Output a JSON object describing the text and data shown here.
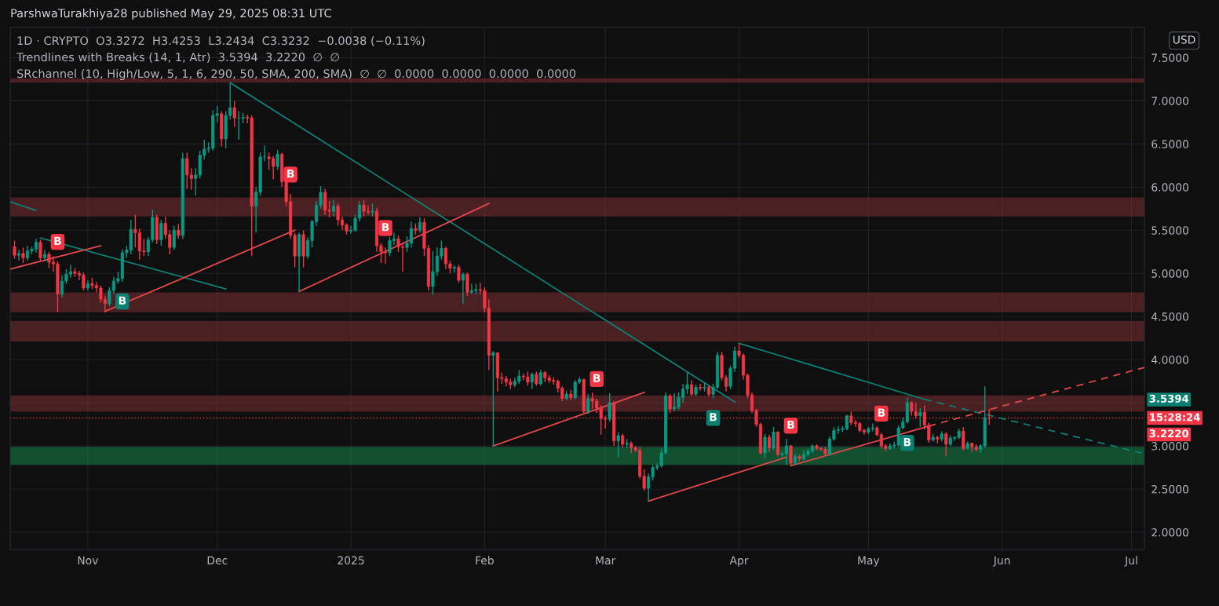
{
  "chart_data": {
    "type": "candlestick",
    "title": "ParshwaTurakhiya28 published May 29, 2025 08:31 UTC",
    "ylabel": "USD",
    "x": [
      "2024-10-15",
      "2024-10-16",
      "2024-10-17",
      "2024-10-18",
      "2024-10-19",
      "2024-10-20",
      "2024-10-21",
      "2024-10-22",
      "2024-10-23",
      "2024-10-24",
      "2024-10-25",
      "2024-10-26",
      "2024-10-27",
      "2024-10-28",
      "2024-10-29",
      "2024-10-30",
      "2024-10-31",
      "2024-11-01",
      "2024-11-02",
      "2024-11-03",
      "2024-11-04",
      "2024-11-05",
      "2024-11-06",
      "2024-11-07",
      "2024-11-08",
      "2024-11-09",
      "2024-11-10",
      "2024-11-11",
      "2024-11-12",
      "2024-11-13",
      "2024-11-14",
      "2024-11-15",
      "2024-11-16",
      "2024-11-17",
      "2024-11-18",
      "2024-11-19",
      "2024-11-20",
      "2024-11-21",
      "2024-11-22",
      "2024-11-23",
      "2024-11-24",
      "2024-11-25",
      "2024-11-26",
      "2024-11-27",
      "2024-11-28",
      "2024-11-29",
      "2024-11-30",
      "2024-12-01",
      "2024-12-02",
      "2024-12-03",
      "2024-12-04",
      "2024-12-05",
      "2024-12-06",
      "2024-12-07",
      "2024-12-08",
      "2024-12-09",
      "2024-12-10",
      "2024-12-11",
      "2024-12-12",
      "2024-12-13",
      "2024-12-14",
      "2024-12-15",
      "2024-12-16",
      "2024-12-17",
      "2024-12-18",
      "2024-12-19",
      "2024-12-20",
      "2024-12-21",
      "2024-12-22",
      "2024-12-23",
      "2024-12-24",
      "2024-12-25",
      "2024-12-26",
      "2024-12-27",
      "2024-12-28",
      "2024-12-29",
      "2024-12-30",
      "2024-12-31",
      "2025-01-01",
      "2025-01-02",
      "2025-01-03",
      "2025-01-04",
      "2025-01-05",
      "2025-01-06",
      "2025-01-07",
      "2025-01-08",
      "2025-01-09",
      "2025-01-10",
      "2025-01-11",
      "2025-01-12",
      "2025-01-13",
      "2025-01-14",
      "2025-01-15",
      "2025-01-16",
      "2025-01-17",
      "2025-01-18",
      "2025-01-19",
      "2025-01-20",
      "2025-01-21",
      "2025-01-22",
      "2025-01-23",
      "2025-01-24",
      "2025-01-25",
      "2025-01-26",
      "2025-01-27",
      "2025-01-28",
      "2025-01-29",
      "2025-01-30",
      "2025-01-31",
      "2025-02-01",
      "2025-02-02",
      "2025-02-03",
      "2025-02-04",
      "2025-02-05",
      "2025-02-06",
      "2025-02-07",
      "2025-02-08",
      "2025-02-09",
      "2025-02-10",
      "2025-02-11",
      "2025-02-12",
      "2025-02-13",
      "2025-02-14",
      "2025-02-15",
      "2025-02-16",
      "2025-02-17",
      "2025-02-18",
      "2025-02-19",
      "2025-02-20",
      "2025-02-21",
      "2025-02-22",
      "2025-02-23",
      "2025-02-24",
      "2025-02-25",
      "2025-02-26",
      "2025-02-27",
      "2025-02-28",
      "2025-03-01",
      "2025-03-02",
      "2025-03-03",
      "2025-03-04",
      "2025-03-05",
      "2025-03-06",
      "2025-03-07",
      "2025-03-08",
      "2025-03-09",
      "2025-03-10",
      "2025-03-11",
      "2025-03-12",
      "2025-03-13",
      "2025-03-14",
      "2025-03-15",
      "2025-03-16",
      "2025-03-17",
      "2025-03-18",
      "2025-03-19",
      "2025-03-20",
      "2025-03-21",
      "2025-03-22",
      "2025-03-23",
      "2025-03-24",
      "2025-03-25",
      "2025-03-26",
      "2025-03-27",
      "2025-03-28",
      "2025-03-29",
      "2025-03-30",
      "2025-03-31",
      "2025-04-01",
      "2025-04-02",
      "2025-04-03",
      "2025-04-04",
      "2025-04-05",
      "2025-04-06",
      "2025-04-07",
      "2025-04-08",
      "2025-04-09",
      "2025-04-10",
      "2025-04-11",
      "2025-04-12",
      "2025-04-13",
      "2025-04-14",
      "2025-04-15",
      "2025-04-16",
      "2025-04-17",
      "2025-04-18",
      "2025-04-19",
      "2025-04-20",
      "2025-04-21",
      "2025-04-22",
      "2025-04-23",
      "2025-04-24",
      "2025-04-25",
      "2025-04-26",
      "2025-04-27",
      "2025-04-28",
      "2025-04-29",
      "2025-04-30",
      "2025-05-01",
      "2025-05-02",
      "2025-05-03",
      "2025-05-04",
      "2025-05-05",
      "2025-05-06",
      "2025-05-07",
      "2025-05-08",
      "2025-05-09",
      "2025-05-10",
      "2025-05-11",
      "2025-05-12",
      "2025-05-13",
      "2025-05-14",
      "2025-05-15",
      "2025-05-16",
      "2025-05-17",
      "2025-05-18",
      "2025-05-19",
      "2025-05-20",
      "2025-05-21",
      "2025-05-22",
      "2025-05-23",
      "2025-05-24",
      "2025-05-25",
      "2025-05-26",
      "2025-05-27",
      "2025-05-28",
      "2025-05-29"
    ],
    "ohlc": [
      [
        5.31,
        5.38,
        5.17,
        5.21
      ],
      [
        5.21,
        5.27,
        5.15,
        5.23
      ],
      [
        5.23,
        5.3,
        5.12,
        5.18
      ],
      [
        5.18,
        5.32,
        5.15,
        5.26
      ],
      [
        5.26,
        5.31,
        5.22,
        5.28
      ],
      [
        5.28,
        5.4,
        5.24,
        5.36
      ],
      [
        5.36,
        5.39,
        5.14,
        5.18
      ],
      [
        5.18,
        5.27,
        5.14,
        5.22
      ],
      [
        5.22,
        5.25,
        5.06,
        5.13
      ],
      [
        5.13,
        5.2,
        5.02,
        5.11
      ],
      [
        5.11,
        5.14,
        4.55,
        4.76
      ],
      [
        4.76,
        4.98,
        4.72,
        4.91
      ],
      [
        4.91,
        5.05,
        4.88,
        4.99
      ],
      [
        4.99,
        5.1,
        4.95,
        5.02
      ],
      [
        5.02,
        5.06,
        4.96,
        5.0
      ],
      [
        5.0,
        5.03,
        4.92,
        4.98
      ],
      [
        4.98,
        5.01,
        4.8,
        4.83
      ],
      [
        4.83,
        4.92,
        4.8,
        4.88
      ],
      [
        4.88,
        4.95,
        4.82,
        4.86
      ],
      [
        4.86,
        4.9,
        4.78,
        4.83
      ],
      [
        4.83,
        4.86,
        4.66,
        4.7
      ],
      [
        4.7,
        4.74,
        4.55,
        4.65
      ],
      [
        4.65,
        4.84,
        4.62,
        4.8
      ],
      [
        4.8,
        4.96,
        4.76,
        4.91
      ],
      [
        4.91,
        5.02,
        4.88,
        4.94
      ],
      [
        4.94,
        5.28,
        4.9,
        5.24
      ],
      [
        5.24,
        5.32,
        5.18,
        5.27
      ],
      [
        5.27,
        5.62,
        5.22,
        5.51
      ],
      [
        5.51,
        5.68,
        5.3,
        5.47
      ],
      [
        5.47,
        5.52,
        5.16,
        5.26
      ],
      [
        5.26,
        5.4,
        5.2,
        5.25
      ],
      [
        5.25,
        5.42,
        5.2,
        5.39
      ],
      [
        5.39,
        5.74,
        5.36,
        5.65
      ],
      [
        5.65,
        5.68,
        5.34,
        5.39
      ],
      [
        5.39,
        5.62,
        5.32,
        5.58
      ],
      [
        5.58,
        5.66,
        5.4,
        5.45
      ],
      [
        5.45,
        5.5,
        5.22,
        5.3
      ],
      [
        5.3,
        5.55,
        5.27,
        5.5
      ],
      [
        5.5,
        5.57,
        5.4,
        5.44
      ],
      [
        5.44,
        6.4,
        5.4,
        6.33
      ],
      [
        6.33,
        6.4,
        5.98,
        6.14
      ],
      [
        6.14,
        6.22,
        5.97,
        6.1
      ],
      [
        6.1,
        6.22,
        5.9,
        6.14
      ],
      [
        6.14,
        6.42,
        6.1,
        6.37
      ],
      [
        6.37,
        6.55,
        6.32,
        6.44
      ],
      [
        6.44,
        6.52,
        6.4,
        6.45
      ],
      [
        6.45,
        6.89,
        6.42,
        6.83
      ],
      [
        6.83,
        6.94,
        6.75,
        6.85
      ],
      [
        6.85,
        6.88,
        6.47,
        6.56
      ],
      [
        6.56,
        6.88,
        6.45,
        6.83
      ],
      [
        6.83,
        7.2,
        6.78,
        6.92
      ],
      [
        6.92,
        7.0,
        6.7,
        6.8
      ],
      [
        6.8,
        6.88,
        6.55,
        6.8
      ],
      [
        6.8,
        6.86,
        6.74,
        6.81
      ],
      [
        6.81,
        6.84,
        6.74,
        6.8
      ],
      [
        6.8,
        6.83,
        5.2,
        5.78
      ],
      [
        5.78,
        6.0,
        5.47,
        5.94
      ],
      [
        5.94,
        6.4,
        5.9,
        6.35
      ],
      [
        6.35,
        6.48,
        6.3,
        6.35
      ],
      [
        6.35,
        6.4,
        6.2,
        6.33
      ],
      [
        6.33,
        6.36,
        6.09,
        6.24
      ],
      [
        6.24,
        6.43,
        6.2,
        6.38
      ],
      [
        6.38,
        6.4,
        6.0,
        6.06
      ],
      [
        6.06,
        6.1,
        5.78,
        5.83
      ],
      [
        5.83,
        5.92,
        5.4,
        5.44
      ],
      [
        5.44,
        5.47,
        5.07,
        5.2
      ],
      [
        5.2,
        5.47,
        4.79,
        5.45
      ],
      [
        5.45,
        5.5,
        5.07,
        5.2
      ],
      [
        5.2,
        5.42,
        5.17,
        5.38
      ],
      [
        5.38,
        5.62,
        5.3,
        5.6
      ],
      [
        5.6,
        5.84,
        5.55,
        5.79
      ],
      [
        5.79,
        6.01,
        5.75,
        5.94
      ],
      [
        5.94,
        5.98,
        5.68,
        5.73
      ],
      [
        5.73,
        5.84,
        5.65,
        5.72
      ],
      [
        5.72,
        5.85,
        5.66,
        5.78
      ],
      [
        5.78,
        5.81,
        5.55,
        5.62
      ],
      [
        5.62,
        5.66,
        5.5,
        5.56
      ],
      [
        5.56,
        5.58,
        5.45,
        5.49
      ],
      [
        5.49,
        5.55,
        5.46,
        5.5
      ],
      [
        5.5,
        5.68,
        5.48,
        5.64
      ],
      [
        5.64,
        5.84,
        5.6,
        5.79
      ],
      [
        5.79,
        5.85,
        5.66,
        5.72
      ],
      [
        5.72,
        5.79,
        5.68,
        5.71
      ],
      [
        5.71,
        5.81,
        5.66,
        5.72
      ],
      [
        5.72,
        5.76,
        5.25,
        5.32
      ],
      [
        5.32,
        5.35,
        5.12,
        5.25
      ],
      [
        5.25,
        5.3,
        5.11,
        5.24
      ],
      [
        5.24,
        5.42,
        5.2,
        5.38
      ],
      [
        5.38,
        5.47,
        5.33,
        5.4
      ],
      [
        5.4,
        5.44,
        5.25,
        5.31
      ],
      [
        5.31,
        5.36,
        5.02,
        5.3
      ],
      [
        5.3,
        5.43,
        5.25,
        5.35
      ],
      [
        5.35,
        5.6,
        5.3,
        5.52
      ],
      [
        5.52,
        5.58,
        5.45,
        5.5
      ],
      [
        5.5,
        5.65,
        5.47,
        5.59
      ],
      [
        5.59,
        5.64,
        5.2,
        5.29
      ],
      [
        5.29,
        5.33,
        4.8,
        4.85
      ],
      [
        4.85,
        5.26,
        4.75,
        5.02
      ],
      [
        5.02,
        5.3,
        4.97,
        5.2
      ],
      [
        5.2,
        5.38,
        5.16,
        5.29
      ],
      [
        5.29,
        5.31,
        5.05,
        5.11
      ],
      [
        5.11,
        5.15,
        5.0,
        5.06
      ],
      [
        5.06,
        5.09,
        5.01,
        5.07
      ],
      [
        5.07,
        5.1,
        4.89,
        4.92
      ],
      [
        4.92,
        5.01,
        4.65,
        4.99
      ],
      [
        4.99,
        5.01,
        4.74,
        4.78
      ],
      [
        4.78,
        4.88,
        4.76,
        4.8
      ],
      [
        4.8,
        4.88,
        4.76,
        4.81
      ],
      [
        4.81,
        4.89,
        4.76,
        4.8
      ],
      [
        4.8,
        4.84,
        4.55,
        4.6
      ],
      [
        4.6,
        4.7,
        3.88,
        4.05
      ],
      [
        4.05,
        4.1,
        3.0,
        4.08
      ],
      [
        4.08,
        4.08,
        3.63,
        3.79
      ],
      [
        3.79,
        3.85,
        3.72,
        3.78
      ],
      [
        3.78,
        3.81,
        3.69,
        3.74
      ],
      [
        3.74,
        3.78,
        3.66,
        3.71
      ],
      [
        3.71,
        3.79,
        3.68,
        3.75
      ],
      [
        3.75,
        3.88,
        3.72,
        3.81
      ],
      [
        3.81,
        3.84,
        3.76,
        3.8
      ],
      [
        3.8,
        3.86,
        3.7,
        3.74
      ],
      [
        3.74,
        3.85,
        3.66,
        3.83
      ],
      [
        3.83,
        3.86,
        3.7,
        3.72
      ],
      [
        3.72,
        3.88,
        3.7,
        3.85
      ],
      [
        3.85,
        3.87,
        3.74,
        3.79
      ],
      [
        3.79,
        3.82,
        3.73,
        3.76
      ],
      [
        3.76,
        3.8,
        3.71,
        3.75
      ],
      [
        3.75,
        3.77,
        3.62,
        3.67
      ],
      [
        3.67,
        3.69,
        3.52,
        3.55
      ],
      [
        3.55,
        3.64,
        3.53,
        3.6
      ],
      [
        3.6,
        3.65,
        3.53,
        3.56
      ],
      [
        3.56,
        3.76,
        3.54,
        3.74
      ],
      [
        3.74,
        3.8,
        3.72,
        3.77
      ],
      [
        3.77,
        3.78,
        3.38,
        3.4
      ],
      [
        3.4,
        3.6,
        3.37,
        3.55
      ],
      [
        3.55,
        3.62,
        3.43,
        3.52
      ],
      [
        3.52,
        3.55,
        3.38,
        3.44
      ],
      [
        3.44,
        3.47,
        3.13,
        3.32
      ],
      [
        3.32,
        3.35,
        3.2,
        3.31
      ],
      [
        3.31,
        3.61,
        3.28,
        3.5
      ],
      [
        3.5,
        3.52,
        3.0,
        3.06
      ],
      [
        3.06,
        3.16,
        2.87,
        3.12
      ],
      [
        3.12,
        3.14,
        2.98,
        3.02
      ],
      [
        3.02,
        3.08,
        2.98,
        3.03
      ],
      [
        3.03,
        3.05,
        2.92,
        2.98
      ],
      [
        2.98,
        3.0,
        2.93,
        2.95
      ],
      [
        2.95,
        2.99,
        2.62,
        2.65
      ],
      [
        2.65,
        2.73,
        2.48,
        2.51
      ],
      [
        2.51,
        2.68,
        2.36,
        2.64
      ],
      [
        2.64,
        2.78,
        2.6,
        2.75
      ],
      [
        2.75,
        2.8,
        2.72,
        2.77
      ],
      [
        2.77,
        2.97,
        2.75,
        2.92
      ],
      [
        2.92,
        3.62,
        2.9,
        3.58
      ],
      [
        3.58,
        3.6,
        3.38,
        3.43
      ],
      [
        3.43,
        3.61,
        3.4,
        3.45
      ],
      [
        3.45,
        3.62,
        3.42,
        3.56
      ],
      [
        3.56,
        3.72,
        3.5,
        3.66
      ],
      [
        3.66,
        3.85,
        3.6,
        3.71
      ],
      [
        3.71,
        3.76,
        3.58,
        3.6
      ],
      [
        3.6,
        3.71,
        3.58,
        3.68
      ],
      [
        3.68,
        3.72,
        3.64,
        3.67
      ],
      [
        3.67,
        3.73,
        3.63,
        3.68
      ],
      [
        3.68,
        3.7,
        3.57,
        3.6
      ],
      [
        3.6,
        3.72,
        3.55,
        3.68
      ],
      [
        3.68,
        4.09,
        3.66,
        4.05
      ],
      [
        4.05,
        4.09,
        3.76,
        3.79
      ],
      [
        3.79,
        3.82,
        3.63,
        3.69
      ],
      [
        3.69,
        3.93,
        3.66,
        3.9
      ],
      [
        3.9,
        4.15,
        3.86,
        4.1
      ],
      [
        4.1,
        4.19,
        4.02,
        4.05
      ],
      [
        4.05,
        4.07,
        3.77,
        3.82
      ],
      [
        3.82,
        3.84,
        3.55,
        3.59
      ],
      [
        3.59,
        3.62,
        3.38,
        3.41
      ],
      [
        3.41,
        3.43,
        3.22,
        3.25
      ],
      [
        3.25,
        3.27,
        2.9,
        2.92
      ],
      [
        2.92,
        3.14,
        2.86,
        3.1
      ],
      [
        3.1,
        3.13,
        2.93,
        2.98
      ],
      [
        2.98,
        3.22,
        2.95,
        3.16
      ],
      [
        3.16,
        3.17,
        2.88,
        2.9
      ],
      [
        2.9,
        2.94,
        2.87,
        2.91
      ],
      [
        2.91,
        3.08,
        2.78,
        3.0
      ],
      [
        3.0,
        3.01,
        2.77,
        2.8
      ],
      [
        2.8,
        2.91,
        2.78,
        2.88
      ],
      [
        2.88,
        2.9,
        2.82,
        2.85
      ],
      [
        2.85,
        2.95,
        2.83,
        2.9
      ],
      [
        2.9,
        2.97,
        2.88,
        2.94
      ],
      [
        2.94,
        3.02,
        2.92,
        3.0
      ],
      [
        3.0,
        3.02,
        2.95,
        2.97
      ],
      [
        2.97,
        2.99,
        2.94,
        2.96
      ],
      [
        2.96,
        2.99,
        2.89,
        2.91
      ],
      [
        2.91,
        3.11,
        2.89,
        3.08
      ],
      [
        3.08,
        3.22,
        3.06,
        3.18
      ],
      [
        3.18,
        3.23,
        3.14,
        3.19
      ],
      [
        3.19,
        3.23,
        3.16,
        3.2
      ],
      [
        3.2,
        3.36,
        3.18,
        3.35
      ],
      [
        3.35,
        3.4,
        3.24,
        3.27
      ],
      [
        3.27,
        3.3,
        3.22,
        3.26
      ],
      [
        3.26,
        3.28,
        3.16,
        3.18
      ],
      [
        3.18,
        3.2,
        3.13,
        3.16
      ],
      [
        3.16,
        3.22,
        3.14,
        3.2
      ],
      [
        3.2,
        3.26,
        3.17,
        3.21
      ],
      [
        3.21,
        3.23,
        3.11,
        3.13
      ],
      [
        3.13,
        3.15,
        2.97,
        3.0
      ],
      [
        3.0,
        3.02,
        2.94,
        2.97
      ],
      [
        2.97,
        3.03,
        2.95,
        3.0
      ],
      [
        3.0,
        3.05,
        2.97,
        3.01
      ],
      [
        3.01,
        3.24,
        2.99,
        3.21
      ],
      [
        3.21,
        3.33,
        3.19,
        3.28
      ],
      [
        3.28,
        3.56,
        3.26,
        3.5
      ],
      [
        3.5,
        3.52,
        3.35,
        3.4
      ],
      [
        3.4,
        3.5,
        3.32,
        3.35
      ],
      [
        3.35,
        3.44,
        3.22,
        3.39
      ],
      [
        3.39,
        3.47,
        3.19,
        3.24
      ],
      [
        3.24,
        3.27,
        3.04,
        3.07
      ],
      [
        3.07,
        3.14,
        3.05,
        3.1
      ],
      [
        3.1,
        3.12,
        3.03,
        3.08
      ],
      [
        3.08,
        3.17,
        3.05,
        3.14
      ],
      [
        3.14,
        3.16,
        2.88,
        3.02
      ],
      [
        3.02,
        3.12,
        3.0,
        3.09
      ],
      [
        3.09,
        3.11,
        3.06,
        3.1
      ],
      [
        3.1,
        3.2,
        3.08,
        3.17
      ],
      [
        3.17,
        3.22,
        2.95,
        2.97
      ],
      [
        2.97,
        3.05,
        2.96,
        3.03
      ],
      [
        3.03,
        3.04,
        2.93,
        2.99
      ],
      [
        2.99,
        3.02,
        2.94,
        2.96
      ],
      [
        2.96,
        3.02,
        2.92,
        3.0
      ],
      [
        3.0,
        3.69,
        2.98,
        3.33
      ],
      [
        3.3272,
        3.4253,
        3.2434,
        3.3232
      ]
    ],
    "series": [
      {
        "type": "line",
        "x": [
          "2024-10-14",
          "2024-10-20"
        ],
        "values": [
          5.83,
          5.73
        ],
        "color": "#0f7f73",
        "line_style": "solid"
      },
      {
        "type": "line",
        "x": [
          "2024-10-21",
          "2024-12-03"
        ],
        "values": [
          5.41,
          4.82
        ],
        "color": "#0f7f73",
        "line_style": "solid"
      },
      {
        "type": "line",
        "x": [
          "2024-12-04",
          "2025-03-31"
        ],
        "values": [
          7.21,
          3.51
        ],
        "color": "#0f7f73",
        "line_style": "solid"
      },
      {
        "type": "line",
        "x": [
          "2025-04-01",
          "2025-05-14"
        ],
        "values": [
          4.19,
          3.54
        ],
        "color": "#0f7f73",
        "line_style": "solid"
      },
      {
        "type": "line",
        "x": [
          "2025-05-14",
          "2025-07-04"
        ],
        "values": [
          3.54,
          2.91
        ],
        "color": "#0f7f73",
        "line_style": "dashed"
      },
      {
        "type": "line",
        "x": [
          "2024-10-14",
          "2024-11-04"
        ],
        "values": [
          5.05,
          5.32
        ],
        "color": "#e0474c",
        "line_style": "solid"
      },
      {
        "type": "line",
        "x": [
          "2024-11-05",
          "2024-12-19"
        ],
        "values": [
          4.56,
          5.5
        ],
        "color": "#e0474c",
        "line_style": "solid"
      },
      {
        "type": "line",
        "x": [
          "2024-12-20",
          "2025-02-02"
        ],
        "values": [
          4.79,
          5.81
        ],
        "color": "#e0474c",
        "line_style": "solid"
      },
      {
        "type": "line",
        "x": [
          "2025-02-03",
          "2025-03-10"
        ],
        "values": [
          3.0,
          3.62
        ],
        "color": "#e0474c",
        "line_style": "solid"
      },
      {
        "type": "line",
        "x": [
          "2025-03-11",
          "2025-04-12"
        ],
        "values": [
          2.36,
          2.87
        ],
        "color": "#e0474c",
        "line_style": "solid"
      },
      {
        "type": "line",
        "x": [
          "2025-04-13",
          "2025-05-15"
        ],
        "values": [
          2.77,
          3.23
        ],
        "color": "#e0474c",
        "line_style": "solid"
      },
      {
        "type": "line",
        "x": [
          "2025-05-15",
          "2025-07-04"
        ],
        "values": [
          3.23,
          3.91
        ],
        "color": "#e0474c",
        "line_style": "dashed"
      }
    ],
    "bands": [
      {
        "axis": "y",
        "from": 7.21,
        "to": 7.26,
        "color": "#7e2f33"
      },
      {
        "axis": "y",
        "from": 5.66,
        "to": 5.88,
        "color": "#7e2f33"
      },
      {
        "axis": "y",
        "from": 4.55,
        "to": 4.78,
        "color": "#7e2f33"
      },
      {
        "axis": "y",
        "from": 4.21,
        "to": 4.45,
        "color": "#7e2f33"
      },
      {
        "axis": "y",
        "from": 3.4,
        "to": 3.585,
        "color": "#7e2f33"
      },
      {
        "axis": "y",
        "from": 2.78,
        "to": 2.99,
        "color": "#15874d"
      }
    ],
    "ref_lines": [
      {
        "axis": "y",
        "value": 3.3232,
        "color": "#f23645",
        "line_style": "dotted"
      }
    ],
    "annotations": [
      "1D · CRYPTO  O3.3272  H3.4253  L3.2434  C3.3232  −0.0038 (−0.11%)",
      "Trendlines with Breaks (14, 1, Atr)  3.5394  3.2220  ∅  ∅",
      "SRchannel (10, High/Low, 5, 1, 6, 290, 50, SMA, 200, SMA)  ∅  ∅  0.0000  0.0000  0.0000  0.0000",
      {
        "text": "B",
        "x": "2024-10-25",
        "y": 5.14
      },
      {
        "text": "B",
        "x": "2024-11-09",
        "y": 4.9
      },
      {
        "text": "B",
        "x": "2024-12-18",
        "y": 5.92
      },
      {
        "text": "B",
        "x": "2025-01-09",
        "y": 5.3
      },
      {
        "text": "B",
        "x": "2025-02-27",
        "y": 3.55
      },
      {
        "text": "B",
        "x": "2025-03-26",
        "y": 3.55
      },
      {
        "text": "B",
        "x": "2025-04-13",
        "y": 3.01
      },
      {
        "text": "B",
        "x": "2025-05-04",
        "y": 3.15
      },
      {
        "text": "B",
        "x": "2025-05-10",
        "y": 3.26
      },
      "3.5394",
      "15:28:24",
      "3.2220"
    ],
    "xlim": [
      "2024-10-14",
      "2025-07-04"
    ],
    "xticks": [
      {
        "value": "2024-11-01",
        "label": "Nov"
      },
      {
        "value": "2024-12-01",
        "label": "Dec"
      },
      {
        "value": "2025-01-01",
        "label": "2025"
      },
      {
        "value": "2025-02-01",
        "label": "Feb"
      },
      {
        "value": "2025-03-01",
        "label": "Mar"
      },
      {
        "value": "2025-04-01",
        "label": "Apr"
      },
      {
        "value": "2025-05-01",
        "label": "May"
      },
      {
        "value": "2025-06-01",
        "label": "Jun"
      },
      {
        "value": "2025-07-01",
        "label": "Jul"
      }
    ],
    "ylim": [
      1.8,
      7.85
    ],
    "yticks": [
      {
        "value": 2,
        "label": "2.0000"
      },
      {
        "value": 2.5,
        "label": "2.5000"
      },
      {
        "value": 3,
        "label": "3.0000"
      },
      {
        "value": 3.5,
        "label": null
      },
      {
        "value": 4,
        "label": "4.0000"
      },
      {
        "value": 4.5,
        "label": "4.5000"
      },
      {
        "value": 5,
        "label": "5.0000"
      },
      {
        "value": 5.5,
        "label": "5.5000"
      },
      {
        "value": 6,
        "label": "6.0000"
      },
      {
        "value": 6.5,
        "label": "6.5000"
      },
      {
        "value": 7,
        "label": "7.0000"
      },
      {
        "value": 7.5,
        "label": "7.5000"
      }
    ],
    "grid": true
  }
}
